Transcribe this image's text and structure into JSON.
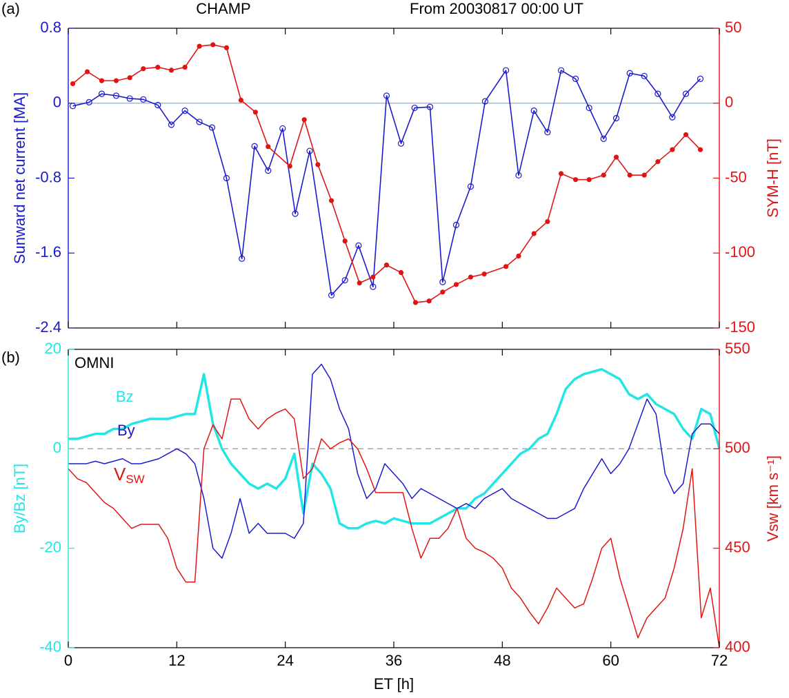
{
  "chart_data": [
    {
      "type": "line",
      "label": "(a)",
      "title": "CHAMP",
      "subtitle": "From 20030817 00:00 UT",
      "ylabel": "Sunward net current [MA]",
      "y2label": "SYM-H [nT]",
      "xlim": [
        0,
        72
      ],
      "xticks": [
        0,
        12,
        24,
        36,
        48,
        60,
        72
      ],
      "ylim": [
        -2.4,
        0.8
      ],
      "yticks": [
        -2.4,
        -1.6,
        -0.8,
        0,
        0.8
      ],
      "y2lim": [
        -150,
        50
      ],
      "y2ticks": [
        -150,
        -100,
        -50,
        0,
        50
      ],
      "series": [
        {
          "color": "#1a1acd",
          "marker": "circle",
          "x": [
            0.5,
            2.3,
            3.7,
            5.3,
            6.8,
            8.3,
            9.9,
            11.4,
            12.9,
            14.5,
            15.9,
            17.5,
            19.2,
            20.6,
            22.1,
            23.7,
            25.1,
            26.7,
            29.1,
            30.6,
            32.1,
            33.7,
            35.2,
            36.8,
            38.3,
            40.0,
            41.4,
            42.9,
            44.5,
            46.1,
            48.4,
            49.8,
            51.5,
            53.0,
            54.5,
            56.1,
            57.6,
            59.2,
            60.6,
            62.1,
            63.7,
            65.2,
            66.8,
            68.3,
            69.9
          ],
          "values": [
            -0.03,
            0.01,
            0.1,
            0.08,
            0.05,
            0.04,
            -0.02,
            -0.23,
            -0.08,
            -0.2,
            -0.26,
            -0.8,
            -1.66,
            -0.46,
            -0.72,
            -0.27,
            -1.18,
            -0.51,
            -2.05,
            -1.89,
            -1.52,
            -1.96,
            0.08,
            -0.43,
            -0.05,
            -0.04,
            -1.91,
            -1.3,
            -0.89,
            0.02,
            0.35,
            -0.77,
            -0.08,
            -0.31,
            0.35,
            0.26,
            -0.05,
            -0.38,
            -0.16,
            0.32,
            0.29,
            0.1,
            -0.15,
            0.1,
            0.26
          ]
        },
        {
          "color": "#e01414",
          "marker": "dot",
          "axis": "y2",
          "x": [
            0.5,
            2.1,
            3.7,
            5.3,
            6.8,
            8.3,
            9.9,
            11.4,
            12.9,
            14.5,
            16.0,
            17.5,
            19.1,
            20.7,
            22.1,
            24.5,
            26.1,
            27.6,
            29.1,
            30.6,
            32.2,
            33.7,
            35.2,
            36.8,
            38.4,
            39.9,
            41.4,
            42.9,
            44.5,
            46.0,
            48.4,
            49.8,
            51.5,
            53.0,
            54.5,
            56.1,
            57.6,
            59.2,
            60.6,
            62.1,
            63.7,
            65.2,
            66.8,
            68.3,
            69.9
          ],
          "values": [
            13,
            21,
            15,
            15,
            17,
            23,
            24,
            22,
            24,
            38,
            39,
            37,
            2,
            -6,
            -29,
            -42,
            -11,
            -41,
            -65,
            -92,
            -120,
            -116,
            -108,
            -113,
            -133,
            -132,
            -126,
            -121,
            -116,
            -114,
            -109,
            -102,
            -87,
            -79,
            -47,
            -51,
            -51,
            -48,
            -36,
            -48,
            -48,
            -39,
            -31,
            -21,
            -31
          ]
        }
      ]
    },
    {
      "type": "line",
      "label": "(b)",
      "annotation": "OMNI",
      "xlabel": "ET [h]",
      "ylabel": "By/Bz [nT]",
      "y2label": "Vsw [km s⁻¹]",
      "xlim": [
        0,
        72
      ],
      "xticks": [
        0,
        12,
        24,
        36,
        48,
        60,
        72
      ],
      "ylim": [
        -40,
        20
      ],
      "yticks": [
        -40,
        -20,
        0,
        20
      ],
      "y2lim": [
        400,
        550
      ],
      "y2ticks": [
        400,
        450,
        500,
        550
      ],
      "x": [
        0,
        1,
        2,
        3,
        4,
        5,
        6,
        7,
        8,
        9,
        10,
        11,
        12,
        13,
        14,
        15,
        16,
        17,
        18,
        19,
        20,
        21,
        22,
        23,
        24,
        25,
        26,
        27,
        28,
        29,
        30,
        31,
        32,
        33,
        34,
        35,
        36,
        37,
        38,
        39,
        40,
        41,
        42,
        43,
        44,
        45,
        46,
        47,
        48,
        49,
        50,
        51,
        52,
        53,
        54,
        55,
        56,
        57,
        58,
        59,
        60,
        61,
        62,
        63,
        64,
        65,
        66,
        67,
        68,
        69,
        70,
        71,
        72
      ],
      "series": [
        {
          "name": "Bz",
          "color": "#22e6e6",
          "values": [
            2,
            2,
            2.5,
            3,
            3,
            4,
            4,
            5,
            5.5,
            6,
            6,
            6,
            6.5,
            7,
            7,
            15,
            5,
            0,
            -3,
            -5,
            -7,
            -8,
            -7,
            -8,
            -6,
            -1,
            -13,
            -3,
            -5,
            -8,
            -15,
            -16,
            -16,
            -15,
            -14.5,
            -15,
            -14,
            -14.5,
            -15,
            -15,
            -15,
            -14,
            -13,
            -12,
            -12,
            -10,
            -9,
            -7,
            -5,
            -3,
            -1,
            0,
            2,
            3,
            7,
            12,
            14,
            15,
            15.5,
            16,
            15,
            14,
            11,
            10,
            11,
            9,
            8,
            7,
            4,
            2,
            8,
            7,
            0
          ]
        },
        {
          "name": "By",
          "color": "#1a1acd",
          "values": [
            -3,
            -3,
            -3,
            -2.5,
            -3,
            -2.5,
            -2,
            -3,
            -3,
            -2.5,
            -2,
            -1,
            0,
            -1,
            -3,
            -10,
            -20,
            -22,
            -17,
            -10,
            -17,
            -15,
            -17,
            -17,
            -17,
            -18,
            -15,
            15,
            17,
            14,
            8,
            4,
            -5,
            -10,
            -8,
            -3,
            -5,
            -7,
            -10,
            -8,
            -9,
            -10,
            -11,
            -12,
            -11,
            -12,
            -10,
            -9,
            -8,
            -10,
            -11,
            -12,
            -13,
            -14,
            -14,
            -13,
            -12,
            -8,
            -5,
            -2,
            -5,
            -3,
            0,
            5,
            10,
            7,
            -5,
            -9,
            -7,
            3,
            5,
            5,
            3
          ]
        },
        {
          "name": "VSW",
          "color": "#e01414",
          "axis": "y2",
          "values": [
            490,
            485,
            483,
            478,
            473,
            470,
            465,
            460,
            462,
            462,
            462,
            455,
            440,
            433,
            433,
            500,
            512,
            505,
            525,
            525,
            515,
            510,
            515,
            518,
            520,
            515,
            485,
            490,
            505,
            500,
            503,
            505,
            500,
            490,
            478,
            478,
            478,
            478,
            460,
            445,
            455,
            455,
            460,
            470,
            455,
            450,
            448,
            445,
            440,
            430,
            425,
            418,
            412,
            420,
            430,
            425,
            420,
            422,
            435,
            450,
            455,
            435,
            420,
            405,
            415,
            420,
            425,
            440,
            460,
            490,
            415,
            430,
            400
          ]
        }
      ]
    }
  ]
}
